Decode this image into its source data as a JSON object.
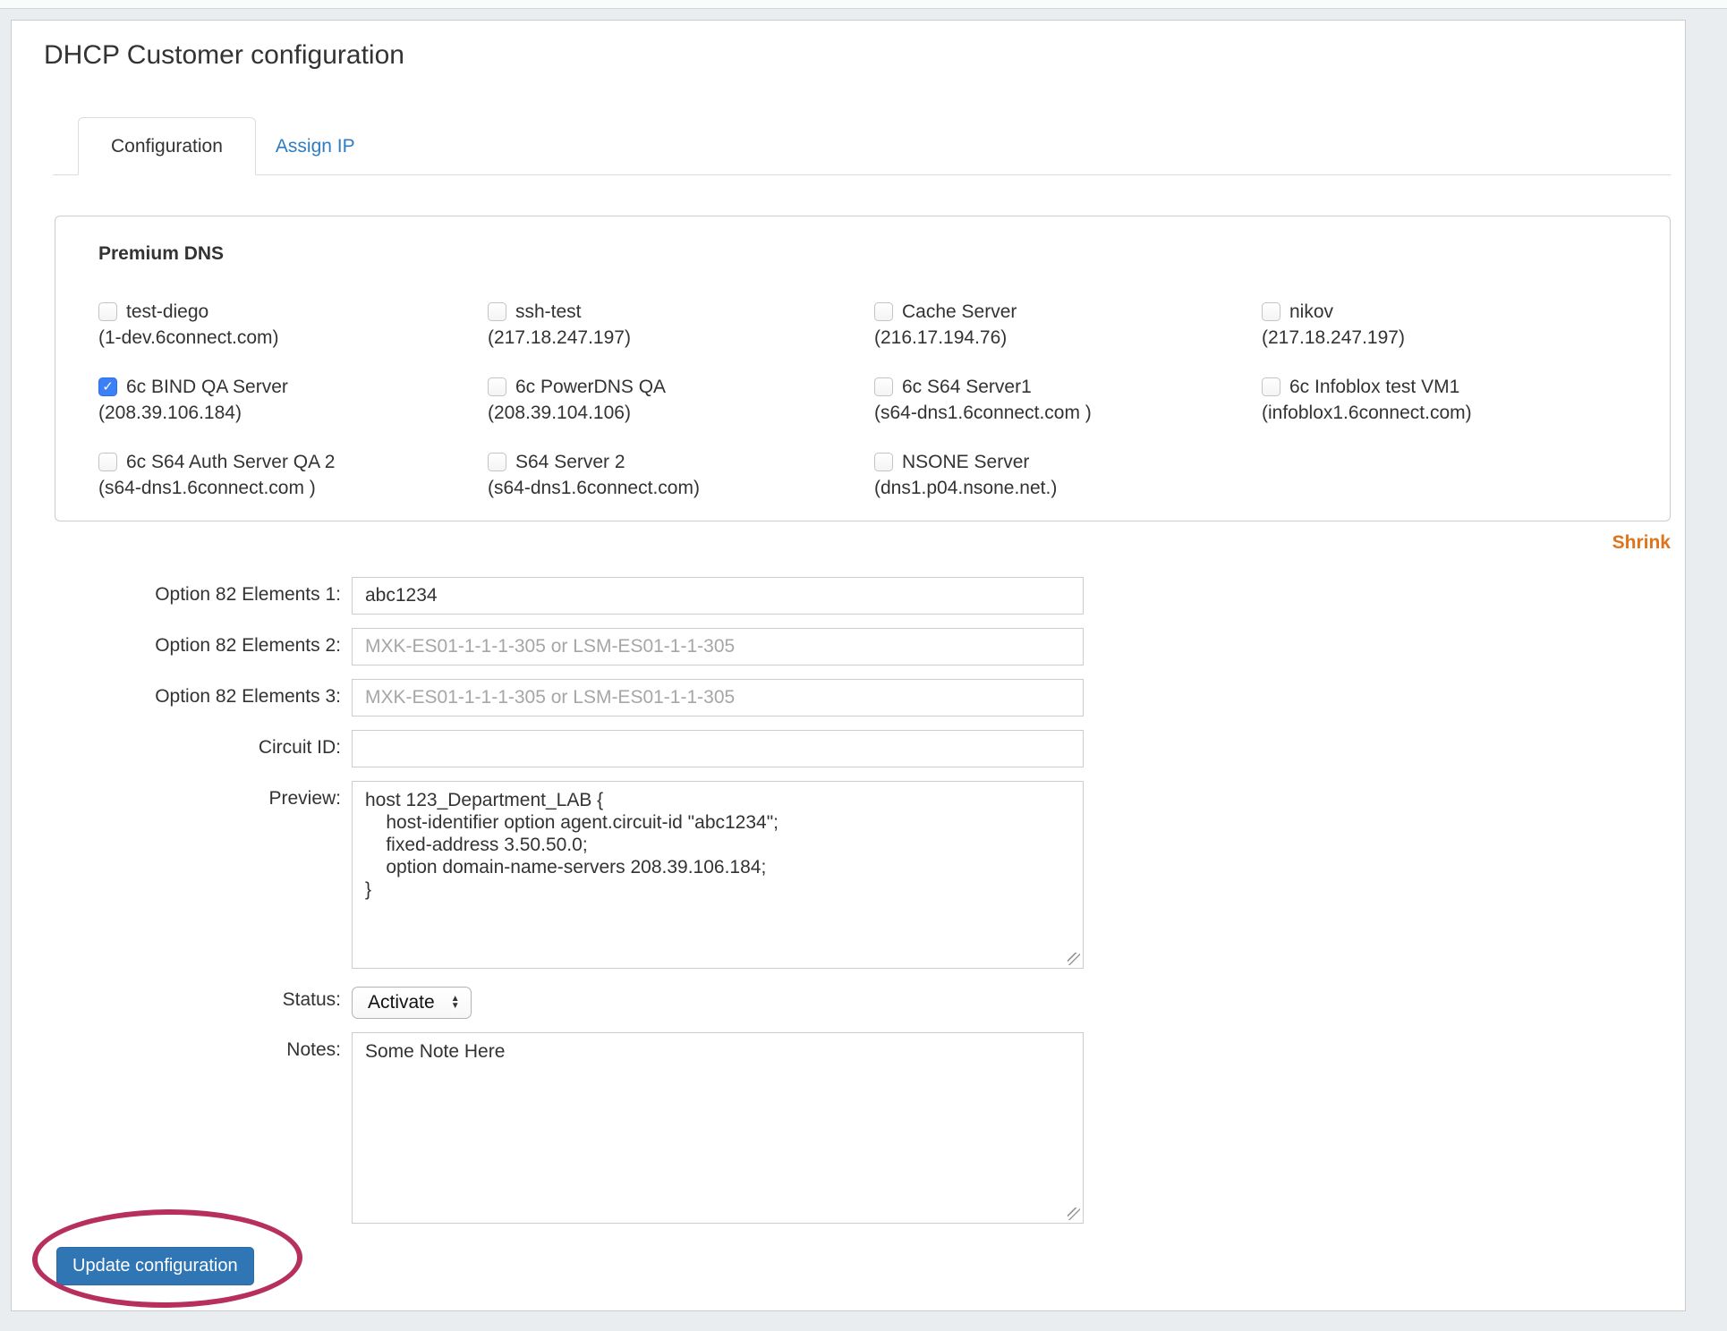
{
  "page": {
    "title": "DHCP Customer configuration",
    "tabs": [
      {
        "label": "Configuration",
        "active": true
      },
      {
        "label": "Assign IP",
        "active": false
      }
    ],
    "shrink_label": "Shrink"
  },
  "premium_dns": {
    "heading": "Premium DNS",
    "servers": [
      {
        "name": "test-diego",
        "host": "(1-dev.6connect.com)",
        "checked": false
      },
      {
        "name": "ssh-test",
        "host": "(217.18.247.197)",
        "checked": false
      },
      {
        "name": "Cache Server",
        "host": "(216.17.194.76)",
        "checked": false
      },
      {
        "name": "nikov",
        "host": "(217.18.247.197)",
        "checked": false
      },
      {
        "name": "6c BIND QA Server",
        "host": "(208.39.106.184)",
        "checked": true
      },
      {
        "name": "6c PowerDNS QA",
        "host": "(208.39.104.106)",
        "checked": false
      },
      {
        "name": "6c S64 Server1",
        "host": "(s64-dns1.6connect.com )",
        "checked": false
      },
      {
        "name": "6c Infoblox test VM1",
        "host": "(infoblox1.6connect.com)",
        "checked": false
      },
      {
        "name": "6c S64 Auth Server QA 2",
        "host": "(s64-dns1.6connect.com )",
        "checked": false
      },
      {
        "name": "S64 Server 2",
        "host": "(s64-dns1.6connect.com)",
        "checked": false
      },
      {
        "name": "NSONE Server",
        "host": "(dns1.p04.nsone.net.)",
        "checked": false
      }
    ]
  },
  "form": {
    "option82_1": {
      "label": "Option 82 Elements 1:",
      "value": "abc1234"
    },
    "option82_2": {
      "label": "Option 82 Elements 2:",
      "placeholder": "MXK-ES01-1-1-1-305 or LSM-ES01-1-1-305"
    },
    "option82_3": {
      "label": "Option 82 Elements 3:",
      "placeholder": "MXK-ES01-1-1-1-305 or LSM-ES01-1-1-305"
    },
    "circuit_id": {
      "label": "Circuit ID:",
      "value": ""
    },
    "preview": {
      "label": "Preview:",
      "value": "host 123_Department_LAB {\n    host-identifier option agent.circuit-id \"abc1234\";\n    fixed-address 3.50.50.0;\n    option domain-name-servers 208.39.106.184;\n}"
    },
    "status": {
      "label": "Status:",
      "value": "Activate"
    },
    "notes": {
      "label": "Notes:",
      "value": "Some Note Here"
    },
    "submit_label": "Update configuration"
  },
  "colors": {
    "accent_blue": "#3076b5",
    "link_blue": "#2e7cc4",
    "checkbox_blue": "#3c80f7",
    "shrink_orange": "#e0741c",
    "annotation_crimson": "#b72f5e"
  }
}
